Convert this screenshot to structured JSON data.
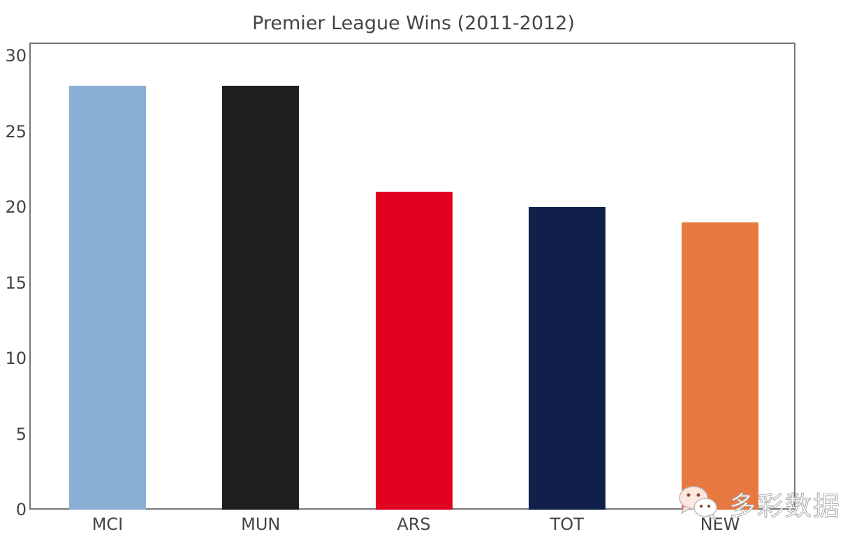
{
  "chart_data": {
    "type": "bar",
    "title": "Premier League Wins (2011-2012)",
    "xlabel": "",
    "ylabel": "",
    "categories": [
      "MCI",
      "MUN",
      "ARS",
      "TOT",
      "NEW"
    ],
    "values": [
      28,
      28,
      21,
      20,
      19
    ],
    "colors": [
      "#8aafd4",
      "#1f1f1f",
      "#e0001f",
      "#10204a",
      "#e77840"
    ],
    "ylim": [
      0,
      30
    ],
    "yticks": [
      "0",
      "5",
      "10",
      "15",
      "20",
      "25",
      "30"
    ],
    "grid": false,
    "legend": null
  },
  "watermark": {
    "icon": "wechat-icon",
    "text": "多彩数据"
  }
}
